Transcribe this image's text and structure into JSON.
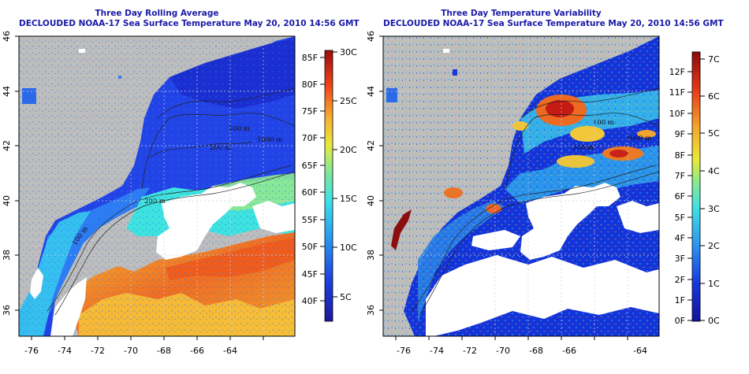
{
  "left_panel": {
    "title_line1": "Three Day Rolling Average",
    "title_line2": "DECLOUDED NOAA-17 Sea Surface Temperature May 20, 2010 14:56 GMT",
    "x_ticks": [
      "-76",
      "-74",
      "-72",
      "-70",
      "-68",
      "-66",
      "-64"
    ],
    "y_ticks": [
      "36",
      "38",
      "40",
      "42",
      "44",
      "46"
    ],
    "contour_labels": [
      "100 m",
      "1000 m",
      "200 m",
      "200 m",
      "100 m"
    ],
    "colorbar_F": [
      "85F",
      "80F",
      "75F",
      "70F",
      "65F",
      "60F",
      "55F",
      "50F",
      "45F",
      "40F"
    ],
    "colorbar_C": [
      "30C",
      "25C",
      "20C",
      "15C",
      "10C",
      "5C"
    ]
  },
  "right_panel": {
    "title_line1": "Three Day Temperature Variability",
    "title_line2": "DECLOUDED NOAA-17 Sea Surface Temperature May 20, 2010 14:56 GMT",
    "x_ticks": [
      "-76",
      "-74",
      "-72",
      "-70",
      "-68",
      "-66",
      "-64"
    ],
    "y_ticks": [
      "36",
      "38",
      "40",
      "42",
      "44",
      "46"
    ],
    "contour_labels": [
      "100 m",
      "1000 m",
      "200 m"
    ],
    "colorbar_F": [
      "12F",
      "11F",
      "10F",
      "9F",
      "8F",
      "7F",
      "6F",
      "5F",
      "4F",
      "3F",
      "2F",
      "1F",
      "0F"
    ],
    "colorbar_C": [
      "7C",
      "6C",
      "5C",
      "4C",
      "3C",
      "2C",
      "1C",
      "0C"
    ]
  },
  "colors": {
    "title": "#1a1aa8",
    "land": "#bdbdbd",
    "cloud_mask": "#ffffff"
  }
}
